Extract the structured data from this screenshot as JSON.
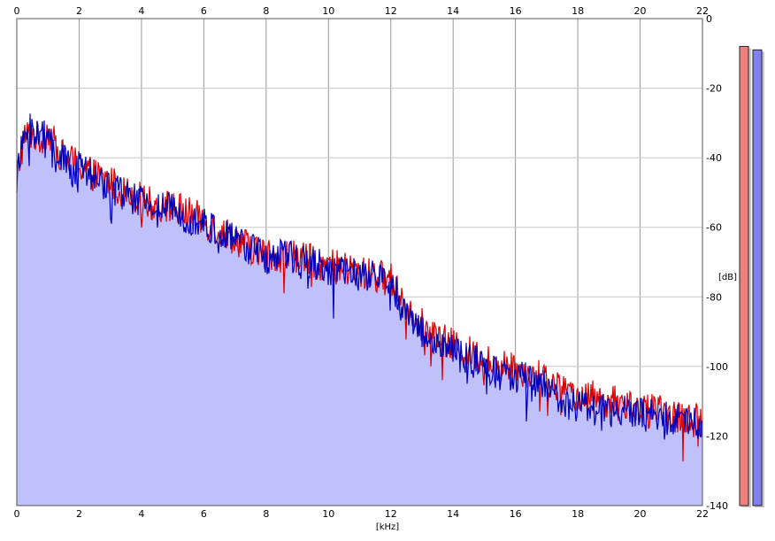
{
  "chart_data": {
    "type": "area",
    "xlabel": "[kHz]",
    "ylabel": "[dB]",
    "xlim": [
      0,
      22
    ],
    "ylim": [
      -140,
      0
    ],
    "x_ticks": [
      0,
      2,
      4,
      6,
      8,
      10,
      12,
      14,
      16,
      18,
      20,
      22
    ],
    "y_ticks": [
      0,
      -20,
      -40,
      -60,
      -80,
      -100,
      -120,
      -140
    ],
    "grid": true,
    "x": [
      0,
      0.25,
      0.5,
      0.75,
      1,
      1.25,
      1.5,
      1.75,
      2,
      2.5,
      3,
      3.5,
      4,
      4.5,
      5,
      5.5,
      6,
      6.5,
      7,
      7.5,
      8,
      8.5,
      9,
      9.5,
      10,
      10.5,
      11,
      11.5,
      12,
      12.25,
      12.5,
      13,
      13.5,
      14,
      14.5,
      15,
      15.5,
      16,
      16.5,
      17,
      17.5,
      18,
      18.5,
      19,
      19.5,
      20,
      20.5,
      21,
      21.5,
      22
    ],
    "series": [
      {
        "values": [
          -45,
          -34,
          -33,
          -35,
          -32,
          -37,
          -40,
          -41,
          -42,
          -45,
          -47,
          -50,
          -52,
          -54,
          -54,
          -56,
          -58,
          -61,
          -63,
          -66,
          -68,
          -68,
          -68,
          -70,
          -71,
          -72,
          -73,
          -74,
          -75,
          -78,
          -82,
          -88,
          -92,
          -94,
          -96,
          -98,
          -100,
          -100,
          -102,
          -104,
          -107,
          -108,
          -109,
          -110,
          -111,
          -112,
          -113,
          -114,
          -115,
          -116
        ],
        "color": "#dd0000"
      },
      {
        "values": [
          -46,
          -33,
          -32,
          -34,
          -33,
          -38,
          -41,
          -43,
          -43,
          -46,
          -48,
          -51,
          -53,
          -54,
          -55,
          -57,
          -59,
          -62,
          -64,
          -66,
          -69,
          -68,
          -69,
          -70,
          -72,
          -73,
          -74,
          -74,
          -76,
          -80,
          -84,
          -90,
          -94,
          -96,
          -98,
          -100,
          -102,
          -103,
          -104,
          -106,
          -110,
          -111,
          -112,
          -113,
          -113,
          -114,
          -114,
          -115,
          -116,
          -116
        ],
        "color": "#0000bb"
      }
    ],
    "fill_color": "#c0c0fb",
    "level_meters": [
      {
        "value": -8,
        "color": "#ee8080"
      },
      {
        "value": -9,
        "color": "#8080f0"
      }
    ]
  }
}
